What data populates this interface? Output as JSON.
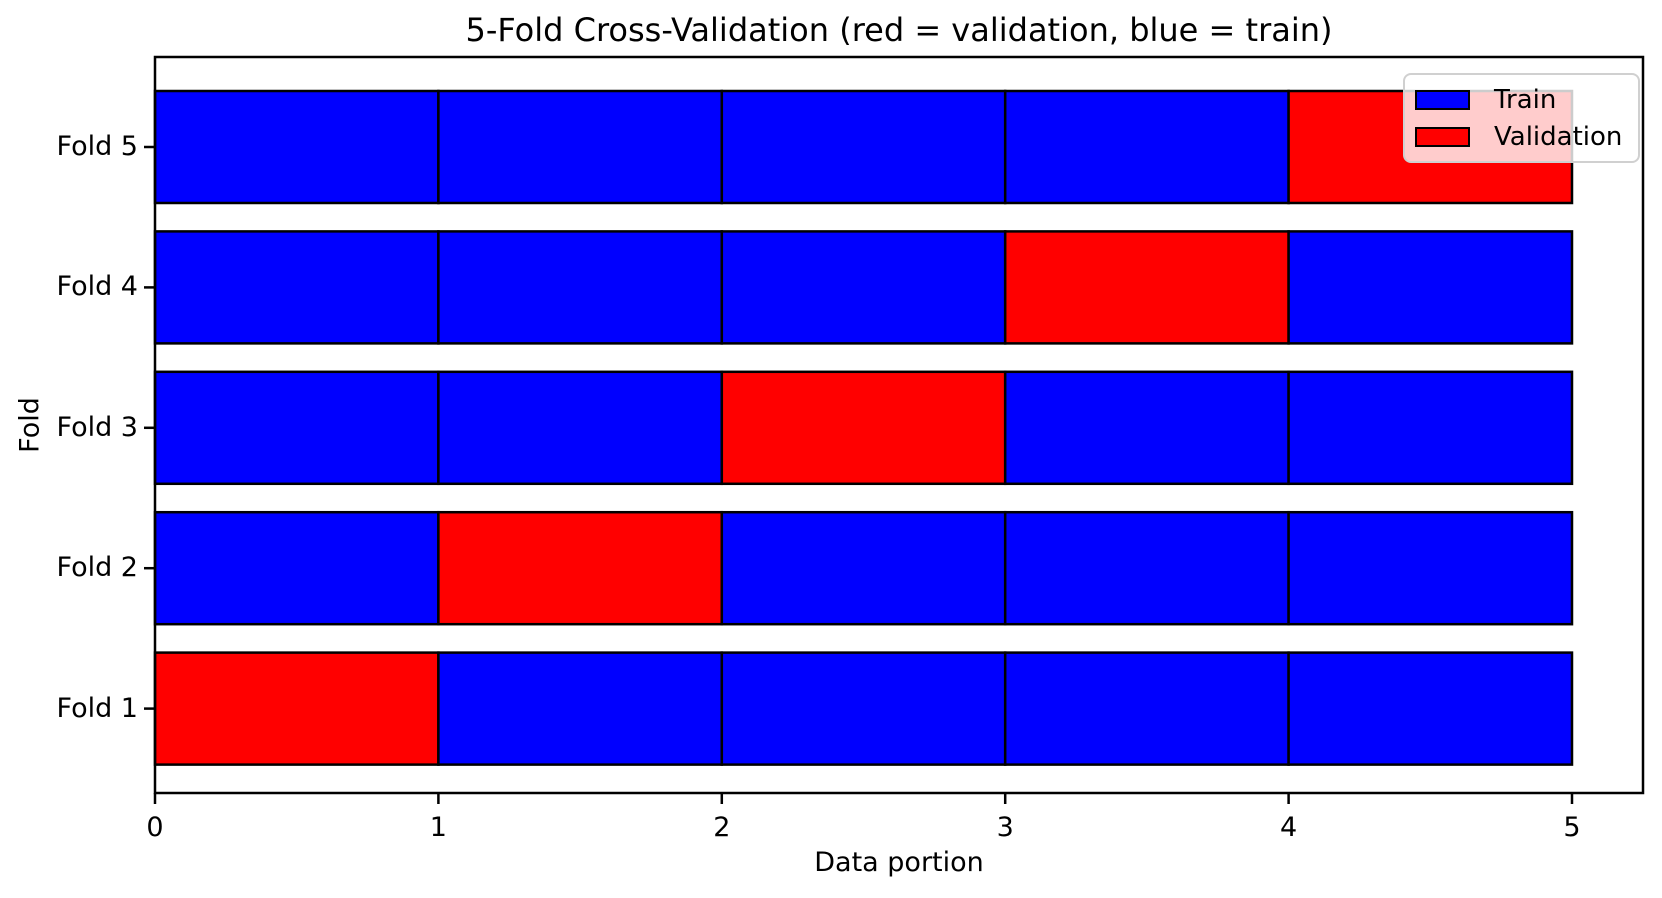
{
  "chart_data": {
    "type": "bar",
    "variant": "horizontal-stacked-segments",
    "title": "5-Fold Cross-Validation (red = validation, blue = train)",
    "xlabel": "Data portion",
    "ylabel": "Fold",
    "x_ticks": [
      "0",
      "1",
      "2",
      "3",
      "4",
      "5"
    ],
    "xlim": [
      0,
      5.25
    ],
    "n_folds": 5,
    "n_segments_per_fold": 5,
    "segment_width": 1,
    "grid": false,
    "legend_position": "upper right",
    "folds": [
      {
        "label": "Fold 1",
        "validation_segment": 0,
        "segments": [
          "validation",
          "train",
          "train",
          "train",
          "train"
        ]
      },
      {
        "label": "Fold 2",
        "validation_segment": 1,
        "segments": [
          "train",
          "validation",
          "train",
          "train",
          "train"
        ]
      },
      {
        "label": "Fold 3",
        "validation_segment": 2,
        "segments": [
          "train",
          "train",
          "validation",
          "train",
          "train"
        ]
      },
      {
        "label": "Fold 4",
        "validation_segment": 3,
        "segments": [
          "train",
          "train",
          "train",
          "validation",
          "train"
        ]
      },
      {
        "label": "Fold 5",
        "validation_segment": 4,
        "segments": [
          "train",
          "train",
          "train",
          "train",
          "validation"
        ]
      }
    ],
    "legend": [
      {
        "label": "Train",
        "color": "#0000ff"
      },
      {
        "label": "Validation",
        "color": "#ff0000"
      }
    ],
    "colors": {
      "train": "#0000ff",
      "validation": "#ff0000",
      "edge": "#000000",
      "background": "#ffffff"
    }
  }
}
